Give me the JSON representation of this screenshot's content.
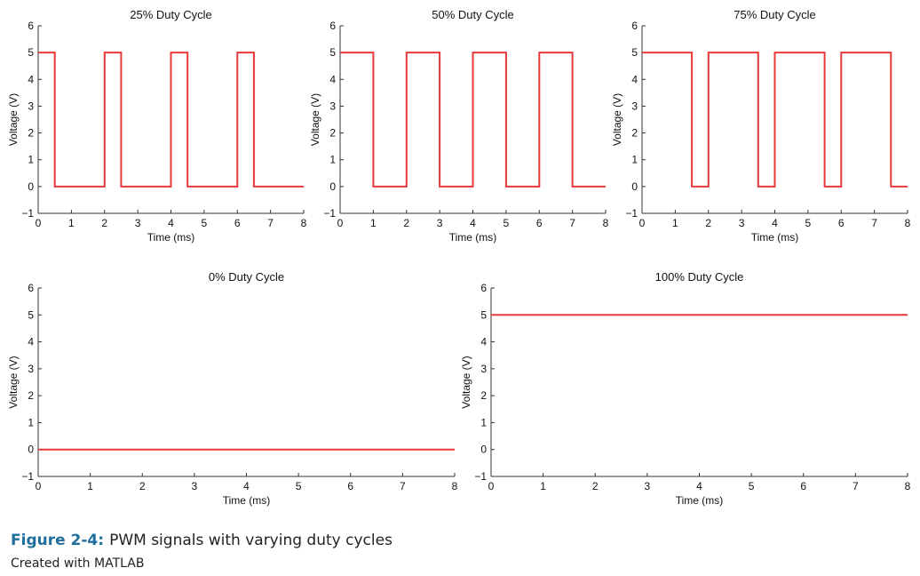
{
  "chart_data": [
    {
      "type": "line",
      "title": "25% Duty Cycle",
      "xlabel": "Time (ms)",
      "ylabel": "Voltage (V)",
      "xlim": [
        0,
        8
      ],
      "ylim": [
        -1,
        6
      ],
      "xticks": [
        0,
        1,
        2,
        3,
        4,
        5,
        6,
        7,
        8
      ],
      "yticks": [
        -1,
        0,
        1,
        2,
        3,
        4,
        5,
        6
      ],
      "period_ms": 2,
      "duty": 0.25,
      "high": 5,
      "low": 0,
      "series": [
        {
          "x": [
            0,
            0.5,
            0.5,
            2,
            2,
            2.5,
            2.5,
            4,
            4,
            4.5,
            4.5,
            6,
            6,
            6.5,
            6.5,
            8
          ],
          "y": [
            5,
            5,
            0,
            0,
            5,
            5,
            0,
            0,
            5,
            5,
            0,
            0,
            5,
            5,
            0,
            0
          ]
        }
      ]
    },
    {
      "type": "line",
      "title": "50% Duty Cycle",
      "xlabel": "Time (ms)",
      "ylabel": "Voltage (V)",
      "xlim": [
        0,
        8
      ],
      "ylim": [
        -1,
        6
      ],
      "xticks": [
        0,
        1,
        2,
        3,
        4,
        5,
        6,
        7,
        8
      ],
      "yticks": [
        -1,
        0,
        1,
        2,
        3,
        4,
        5,
        6
      ],
      "period_ms": 2,
      "duty": 0.5,
      "high": 5,
      "low": 0,
      "series": [
        {
          "x": [
            0,
            1,
            1,
            2,
            2,
            3,
            3,
            4,
            4,
            5,
            5,
            6,
            6,
            7,
            7,
            8
          ],
          "y": [
            5,
            5,
            0,
            0,
            5,
            5,
            0,
            0,
            5,
            5,
            0,
            0,
            5,
            5,
            0,
            0
          ]
        }
      ]
    },
    {
      "type": "line",
      "title": "75% Duty Cycle",
      "xlabel": "Time (ms)",
      "ylabel": "Voltage (V)",
      "xlim": [
        0,
        8
      ],
      "ylim": [
        -1,
        6
      ],
      "xticks": [
        0,
        1,
        2,
        3,
        4,
        5,
        6,
        7,
        8
      ],
      "yticks": [
        -1,
        0,
        1,
        2,
        3,
        4,
        5,
        6
      ],
      "period_ms": 2,
      "duty": 0.75,
      "high": 5,
      "low": 0,
      "series": [
        {
          "x": [
            0,
            1.5,
            1.5,
            2,
            2,
            3.5,
            3.5,
            4,
            4,
            5.5,
            5.5,
            6,
            6,
            7.5,
            7.5,
            8
          ],
          "y": [
            5,
            5,
            0,
            0,
            5,
            5,
            0,
            0,
            5,
            5,
            0,
            0,
            5,
            5,
            0,
            0
          ]
        }
      ]
    },
    {
      "type": "line",
      "title": "0% Duty Cycle",
      "xlabel": "Time (ms)",
      "ylabel": "Voltage (V)",
      "xlim": [
        0,
        8
      ],
      "ylim": [
        -1,
        6
      ],
      "xticks": [
        0,
        1,
        2,
        3,
        4,
        5,
        6,
        7,
        8
      ],
      "yticks": [
        -1,
        0,
        1,
        2,
        3,
        4,
        5,
        6
      ],
      "duty": 0,
      "high": 5,
      "low": 0,
      "series": [
        {
          "x": [
            0,
            8
          ],
          "y": [
            0,
            0
          ]
        }
      ]
    },
    {
      "type": "line",
      "title": "100% Duty Cycle",
      "xlabel": "Time (ms)",
      "ylabel": "Voltage (V)",
      "xlim": [
        0,
        8
      ],
      "ylim": [
        -1,
        6
      ],
      "xticks": [
        0,
        1,
        2,
        3,
        4,
        5,
        6,
        7,
        8
      ],
      "yticks": [
        -1,
        0,
        1,
        2,
        3,
        4,
        5,
        6
      ],
      "duty": 1,
      "high": 5,
      "low": 0,
      "series": [
        {
          "x": [
            0,
            8
          ],
          "y": [
            5,
            5
          ]
        }
      ]
    }
  ],
  "colors": {
    "signal": "#e8393a",
    "axis": "#333333",
    "figure_label": "#1f6e9c"
  },
  "caption": {
    "label": "Figure 2-4:",
    "text": "PWM signals with varying duty cycles"
  },
  "credit": "Created with MATLAB"
}
